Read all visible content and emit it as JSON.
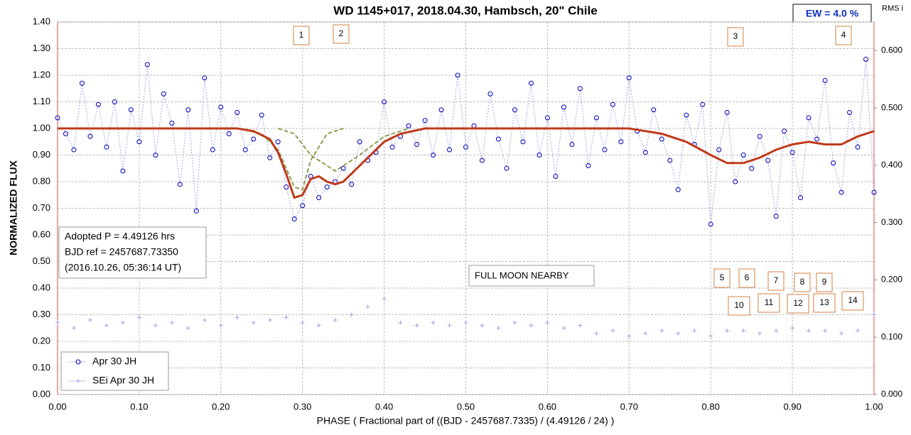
{
  "chart_data": {
    "type": "scatter",
    "title": "WD 1145+017, 2018.04.30, Hambsch, 20\" Chile",
    "x_label": "PHASE  ( Fractional part of ((BJD - 2457687.7335)  / (4.49126  / 24) )",
    "y_label": "NORMALIZED  FLUX",
    "y2_label": "RMS i",
    "ew_box": "EW =  4.0 %",
    "info_box": [
      "Adopted P = 4.49126 hrs",
      "BJD ref = 2457687.73350",
      "(2016.10.26, 05:36:14 UT)"
    ],
    "note": "FULL MOON NEARBY",
    "annotations": [
      "1",
      "2",
      "3",
      "4",
      "5",
      "6",
      "7",
      "8",
      "9",
      "10",
      "11",
      "12",
      "13",
      "14"
    ],
    "xlim": [
      0,
      1
    ],
    "ylim": [
      0,
      1.4
    ],
    "y2lim": [
      0,
      0.65
    ],
    "grid": true,
    "xticks": [
      {
        "value": 0,
        "label": "0.00"
      },
      {
        "value": 0.1,
        "label": "0.10"
      },
      {
        "value": 0.2,
        "label": "0.20"
      },
      {
        "value": 0.3,
        "label": "0.30"
      },
      {
        "value": 0.4,
        "label": "0.40"
      },
      {
        "value": 0.5,
        "label": "0.50"
      },
      {
        "value": 0.6,
        "label": "0.60"
      },
      {
        "value": 0.7,
        "label": "0.70"
      },
      {
        "value": 0.8,
        "label": "0.80"
      },
      {
        "value": 0.9,
        "label": "0.90"
      },
      {
        "value": 1,
        "label": "1.00"
      }
    ],
    "yticks": [
      {
        "value": 0,
        "label": "0.00"
      },
      {
        "value": 0.1,
        "label": "0.10"
      },
      {
        "value": 0.2,
        "label": "0.20"
      },
      {
        "value": 0.3,
        "label": "0.30"
      },
      {
        "value": 0.4,
        "label": "0.40"
      },
      {
        "value": 0.5,
        "label": "0.50"
      },
      {
        "value": 0.6,
        "label": "0.60"
      },
      {
        "value": 0.7,
        "label": "0.70"
      },
      {
        "value": 0.8,
        "label": "0.80"
      },
      {
        "value": 0.9,
        "label": "0.90"
      },
      {
        "value": 1,
        "label": "1.00"
      },
      {
        "value": 1.1,
        "label": "1.10"
      },
      {
        "value": 1.2,
        "label": "1.20"
      },
      {
        "value": 1.3,
        "label": "1.30"
      },
      {
        "value": 1.4,
        "label": "1.40"
      }
    ],
    "y2ticks": [
      {
        "value": 0,
        "label": "0.000"
      },
      {
        "value": 0.1,
        "label": "0.100"
      },
      {
        "value": 0.2,
        "label": "0.200"
      },
      {
        "value": 0.3,
        "label": "0.300"
      },
      {
        "value": 0.4,
        "label": "0.400"
      },
      {
        "value": 0.5,
        "label": "0.500"
      },
      {
        "value": 0.6,
        "label": "0.600"
      }
    ],
    "series": [
      {
        "name": "Apr 30 JH",
        "color": "#0000c0",
        "marker": "circle",
        "x": [
          0,
          0.01,
          0.02,
          0.03,
          0.04,
          0.05,
          0.06,
          0.07,
          0.08,
          0.09,
          0.1,
          0.11,
          0.12,
          0.13,
          0.14,
          0.15,
          0.16,
          0.17,
          0.18,
          0.19,
          0.2,
          0.21,
          0.22,
          0.23,
          0.24,
          0.25,
          0.26,
          0.27,
          0.28,
          0.29,
          0.3,
          0.31,
          0.32,
          0.33,
          0.34,
          0.35,
          0.36,
          0.37,
          0.38,
          0.39,
          0.4,
          0.41,
          0.42,
          0.43,
          0.44,
          0.45,
          0.46,
          0.47,
          0.48,
          0.49,
          0.5,
          0.51,
          0.52,
          0.53,
          0.54,
          0.55,
          0.56,
          0.57,
          0.58,
          0.59,
          0.6,
          0.61,
          0.62,
          0.63,
          0.64,
          0.65,
          0.66,
          0.67,
          0.68,
          0.69,
          0.7,
          0.71,
          0.72,
          0.73,
          0.74,
          0.75,
          0.76,
          0.77,
          0.78,
          0.79,
          0.8,
          0.81,
          0.82,
          0.83,
          0.84,
          0.85,
          0.86,
          0.87,
          0.88,
          0.89,
          0.9,
          0.91,
          0.92,
          0.93,
          0.94,
          0.95,
          0.96,
          0.97,
          0.98,
          0.99,
          1
        ],
        "values": [
          1.04,
          0.98,
          0.92,
          1.17,
          0.97,
          1.09,
          0.93,
          1.1,
          0.84,
          1.07,
          0.95,
          1.24,
          0.9,
          1.13,
          1.02,
          0.79,
          1.07,
          0.69,
          1.19,
          0.92,
          1.08,
          0.98,
          1.06,
          0.92,
          0.96,
          1.05,
          0.89,
          0.95,
          0.78,
          0.66,
          0.71,
          0.82,
          0.74,
          0.78,
          0.8,
          0.85,
          0.79,
          0.95,
          0.88,
          0.91,
          1.1,
          0.93,
          0.97,
          1.01,
          0.94,
          1.03,
          0.9,
          1.07,
          0.92,
          1.2,
          0.93,
          1.01,
          0.88,
          1.13,
          0.96,
          0.85,
          1.07,
          0.95,
          1.17,
          0.9,
          1.04,
          0.82,
          1.08,
          0.94,
          1.15,
          0.86,
          1.04,
          0.92,
          1.09,
          0.95,
          1.19,
          0.99,
          0.91,
          1.07,
          0.96,
          0.88,
          0.77,
          1.05,
          0.94,
          1.09,
          0.64,
          0.92,
          1.06,
          0.8,
          0.9,
          0.85,
          0.97,
          0.88,
          0.67,
          0.99,
          0.91,
          0.74,
          1.04,
          0.96,
          1.18,
          0.87,
          0.76,
          1.06,
          0.93,
          1.26,
          0.76
        ]
      },
      {
        "name": "SEi Apr 30 JH",
        "color": "#a0a0e8",
        "marker": "plus",
        "x": [
          0,
          0.02,
          0.04,
          0.06,
          0.08,
          0.1,
          0.12,
          0.14,
          0.16,
          0.18,
          0.2,
          0.22,
          0.24,
          0.26,
          0.28,
          0.3,
          0.32,
          0.34,
          0.36,
          0.38,
          0.4,
          0.42,
          0.44,
          0.46,
          0.48,
          0.5,
          0.52,
          0.54,
          0.56,
          0.58,
          0.6,
          0.62,
          0.64,
          0.66,
          0.68,
          0.7,
          0.72,
          0.74,
          0.76,
          0.78,
          0.8,
          0.82,
          0.84,
          0.86,
          0.88,
          0.9,
          0.92,
          0.94,
          0.96,
          0.98,
          1
        ],
        "values": [
          0.27,
          0.25,
          0.28,
          0.26,
          0.27,
          0.29,
          0.26,
          0.27,
          0.25,
          0.28,
          0.26,
          0.29,
          0.27,
          0.28,
          0.29,
          0.27,
          0.26,
          0.28,
          0.3,
          0.33,
          0.36,
          0.27,
          0.26,
          0.27,
          0.26,
          0.27,
          0.26,
          0.25,
          0.27,
          0.26,
          0.27,
          0.25,
          0.26,
          0.23,
          0.24,
          0.22,
          0.23,
          0.24,
          0.23,
          0.24,
          0.22,
          0.24,
          0.24,
          0.23,
          0.24,
          0.25,
          0.24,
          0.24,
          0.23,
          0.24,
          0.3
        ]
      },
      {
        "color": "#c03a1a",
        "style": "model",
        "x": [
          0,
          0.22,
          0.24,
          0.26,
          0.27,
          0.28,
          0.29,
          0.3,
          0.31,
          0.32,
          0.33,
          0.34,
          0.35,
          0.36,
          0.38,
          0.4,
          0.42,
          0.45,
          0.7,
          0.74,
          0.77,
          0.8,
          0.82,
          0.84,
          0.86,
          0.88,
          0.9,
          0.92,
          0.94,
          0.96,
          0.98,
          1
        ],
        "values": [
          1,
          1,
          0.99,
          0.96,
          0.91,
          0.83,
          0.74,
          0.75,
          0.81,
          0.82,
          0.8,
          0.79,
          0.8,
          0.83,
          0.89,
          0.95,
          0.98,
          1,
          1,
          0.98,
          0.95,
          0.9,
          0.87,
          0.87,
          0.89,
          0.92,
          0.94,
          0.95,
          0.94,
          0.94,
          0.97,
          0.99
        ]
      },
      {
        "color": "#8aa050",
        "style": "component",
        "x": [
          0.22,
          0.25,
          0.27,
          0.29,
          0.3,
          0.31,
          0.33,
          0.35
        ],
        "values": [
          1,
          0.98,
          0.92,
          0.78,
          0.77,
          0.88,
          0.98,
          1
        ]
      },
      {
        "color": "#8aa050",
        "style": "component",
        "x": [
          0.27,
          0.29,
          0.31,
          0.34,
          0.37,
          0.4,
          0.43
        ],
        "values": [
          1,
          0.98,
          0.9,
          0.84,
          0.9,
          0.97,
          1
        ]
      }
    ]
  }
}
